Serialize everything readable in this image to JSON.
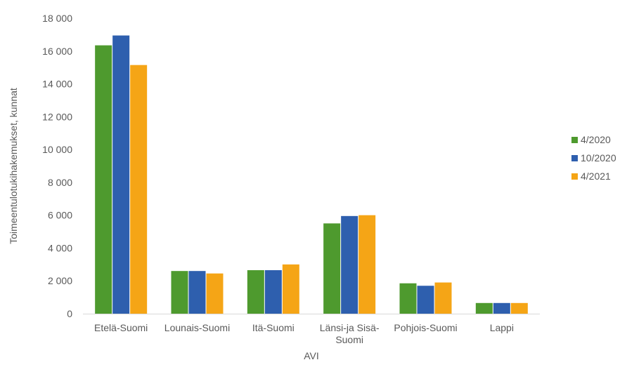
{
  "chart_data": {
    "type": "bar",
    "xlabel": "AVI",
    "ylabel": "Toimeentulotukihakemukset, kunnat",
    "ylim": [
      0,
      18000
    ],
    "yticks": [
      "0",
      "2 000",
      "4 000",
      "6 000",
      "8 000",
      "10 000",
      "12 000",
      "14 000",
      "16 000",
      "18 000"
    ],
    "categories": [
      "Etelä-Suomi",
      "Lounais-Suomi",
      "Itä-Suomi",
      "Länsi-ja Sisä-Suomi",
      "Pohjois-Suomi",
      "Lappi"
    ],
    "category_lines": [
      [
        "Etelä-Suomi"
      ],
      [
        "Lounais-Suomi"
      ],
      [
        "Itä-Suomi"
      ],
      [
        "Länsi-ja Sisä-",
        "Suomi"
      ],
      [
        "Pohjois-Suomi"
      ],
      [
        "Lappi"
      ]
    ],
    "series": [
      {
        "name": "4/2020",
        "color": "#4e9a2e",
        "values": [
          16350,
          2600,
          2650,
          5500,
          1850,
          650
        ]
      },
      {
        "name": "10/2020",
        "color": "#2e5fae",
        "values": [
          16950,
          2600,
          2650,
          5950,
          1700,
          650
        ]
      },
      {
        "name": "4/2021",
        "color": "#f5a516",
        "values": [
          15150,
          2450,
          3000,
          6000,
          1900,
          650
        ]
      }
    ],
    "legend_position": "right",
    "grid": false
  }
}
